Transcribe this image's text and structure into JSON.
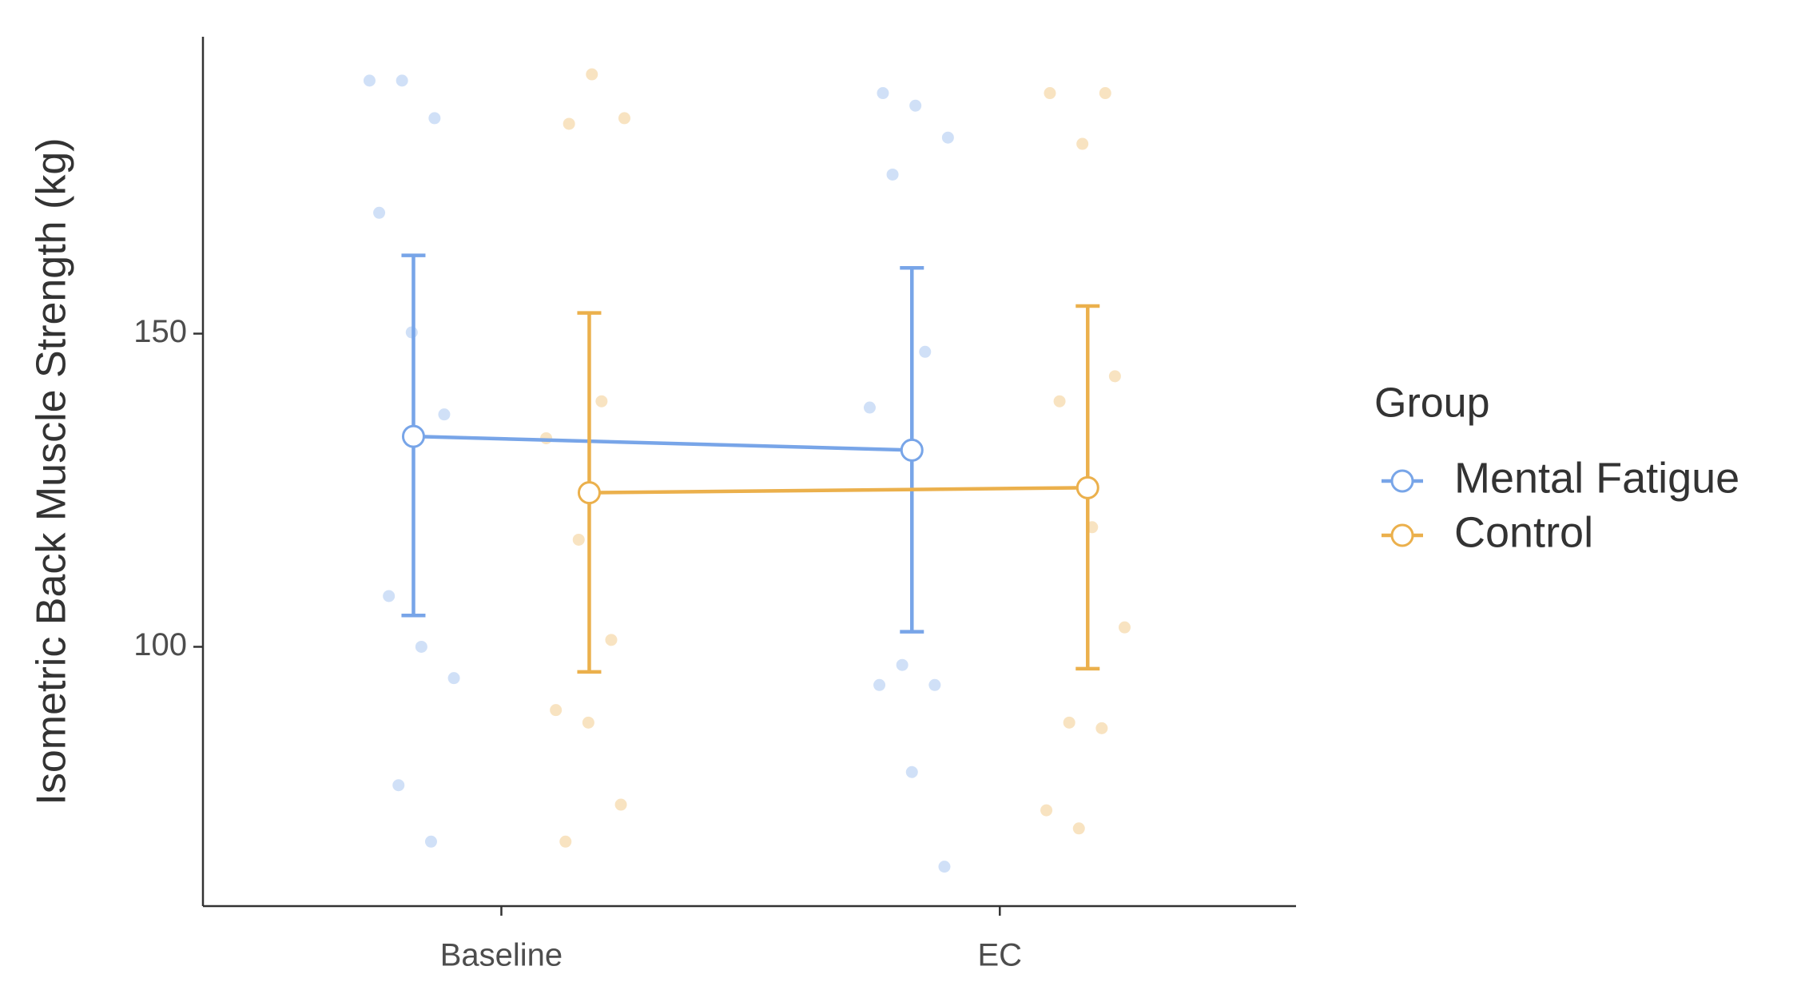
{
  "chart_data": {
    "type": "line",
    "y_label": "Isometric Back Muscle Strength (kg)",
    "categories": [
      "Baseline",
      "EC"
    ],
    "ylim": [
      58.6,
      197.4
    ],
    "yticks": [
      100,
      150
    ],
    "legend_title": "Group",
    "legend": "right",
    "series": [
      {
        "name": "Mental Fatigue",
        "color": "#78a5e8",
        "values": [
          133.6,
          131.4
        ],
        "lower": [
          105,
          102.4
        ],
        "upper": [
          162.5,
          160.5
        ],
        "points": [
          [
            190.4,
            190.4,
            184.4,
            169.3,
            150.2,
            137.1,
            108.1,
            100,
            95.0,
            77.9,
            68.9
          ],
          [
            188.4,
            186.4,
            181.3,
            175.4,
            147.1,
            138.2,
            97.1,
            93.9,
            93.9,
            80.0,
            64.9
          ]
        ]
      },
      {
        "name": "Control",
        "color": "#ebb04c",
        "values": [
          124.6,
          125.4
        ],
        "lower": [
          96.0,
          96.5
        ],
        "upper": [
          153.3,
          154.4
        ],
        "points": [
          [
            191.4,
            184.4,
            183.5,
            139.2,
            133.3,
            117.1,
            101.1,
            89.9,
            87.9,
            74.8,
            68.9
          ],
          [
            188.4,
            188.4,
            180.3,
            143.2,
            139.2,
            119.1,
            103.1,
            87.9,
            87.0,
            73.9,
            71.0
          ]
        ]
      }
    ]
  }
}
